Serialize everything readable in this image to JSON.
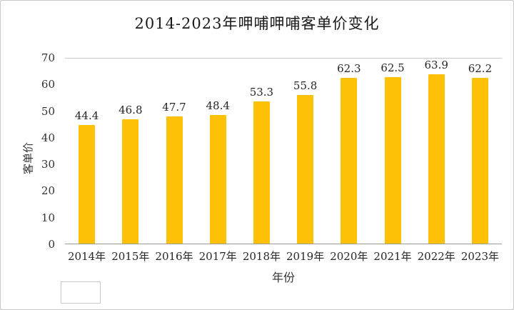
{
  "chart_data": {
    "type": "bar",
    "title": "2014-2023年呷哺呷哺客单价变化",
    "xlabel": "年份",
    "ylabel": "客单价",
    "categories": [
      "2014年",
      "2015年",
      "2016年",
      "2017年",
      "2018年",
      "2019年",
      "2020年",
      "2021年",
      "2022年",
      "2023年"
    ],
    "values": [
      44.4,
      46.8,
      47.7,
      48.4,
      53.3,
      55.8,
      62.3,
      62.5,
      63.9,
      62.2
    ],
    "ylim": [
      0,
      70
    ],
    "yticks": [
      0,
      10,
      20,
      30,
      40,
      50,
      60,
      70
    ],
    "bar_color": "#FFC107",
    "grid": false,
    "legend_position": "none",
    "data_labels": true
  }
}
